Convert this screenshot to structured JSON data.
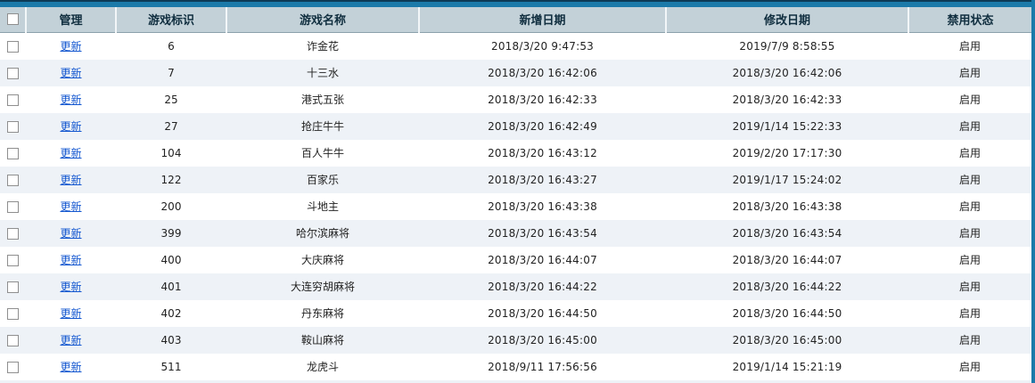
{
  "colors": {
    "top_bar": "#1b7aa9",
    "top_line": "#0d3a55",
    "right_strip": "#1b7aa9",
    "header_bg": "#c3d1d8",
    "header_text": "#102e3f",
    "row_alt_bg": "#eef2f7",
    "link": "#1558d0",
    "text": "#222222"
  },
  "table": {
    "headers": [
      "管理",
      "游戏标识",
      "游戏名称",
      "新增日期",
      "修改日期",
      "禁用状态"
    ],
    "rows": [
      {
        "action": "更新",
        "game_id": "6",
        "game_name": "诈金花",
        "created_date": "2018/3/20 9:47:53",
        "modified_date": "2019/7/9 8:58:55",
        "status": "启用"
      },
      {
        "action": "更新",
        "game_id": "7",
        "game_name": "十三水",
        "created_date": "2018/3/20 16:42:06",
        "modified_date": "2018/3/20 16:42:06",
        "status": "启用"
      },
      {
        "action": "更新",
        "game_id": "25",
        "game_name": "港式五张",
        "created_date": "2018/3/20 16:42:33",
        "modified_date": "2018/3/20 16:42:33",
        "status": "启用"
      },
      {
        "action": "更新",
        "game_id": "27",
        "game_name": "抢庄牛牛",
        "created_date": "2018/3/20 16:42:49",
        "modified_date": "2019/1/14 15:22:33",
        "status": "启用"
      },
      {
        "action": "更新",
        "game_id": "104",
        "game_name": "百人牛牛",
        "created_date": "2018/3/20 16:43:12",
        "modified_date": "2019/2/20 17:17:30",
        "status": "启用"
      },
      {
        "action": "更新",
        "game_id": "122",
        "game_name": "百家乐",
        "created_date": "2018/3/20 16:43:27",
        "modified_date": "2019/1/17 15:24:02",
        "status": "启用"
      },
      {
        "action": "更新",
        "game_id": "200",
        "game_name": "斗地主",
        "created_date": "2018/3/20 16:43:38",
        "modified_date": "2018/3/20 16:43:38",
        "status": "启用"
      },
      {
        "action": "更新",
        "game_id": "399",
        "game_name": "哈尔滨麻将",
        "created_date": "2018/3/20 16:43:54",
        "modified_date": "2018/3/20 16:43:54",
        "status": "启用"
      },
      {
        "action": "更新",
        "game_id": "400",
        "game_name": "大庆麻将",
        "created_date": "2018/3/20 16:44:07",
        "modified_date": "2018/3/20 16:44:07",
        "status": "启用"
      },
      {
        "action": "更新",
        "game_id": "401",
        "game_name": "大连穷胡麻将",
        "created_date": "2018/3/20 16:44:22",
        "modified_date": "2018/3/20 16:44:22",
        "status": "启用"
      },
      {
        "action": "更新",
        "game_id": "402",
        "game_name": "丹东麻将",
        "created_date": "2018/3/20 16:44:50",
        "modified_date": "2018/3/20 16:44:50",
        "status": "启用"
      },
      {
        "action": "更新",
        "game_id": "403",
        "game_name": "鞍山麻将",
        "created_date": "2018/3/20 16:45:00",
        "modified_date": "2018/3/20 16:45:00",
        "status": "启用"
      },
      {
        "action": "更新",
        "game_id": "511",
        "game_name": "龙虎斗",
        "created_date": "2018/9/11 17:56:56",
        "modified_date": "2019/1/14 15:21:19",
        "status": "启用"
      }
    ]
  }
}
